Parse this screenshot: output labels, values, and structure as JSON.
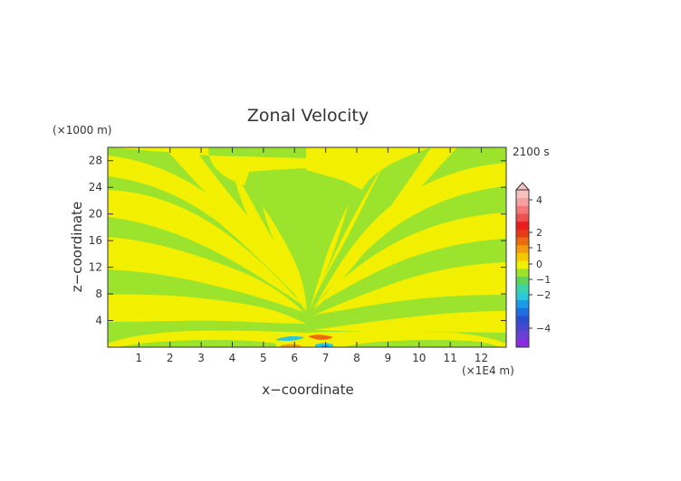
{
  "chart_data": {
    "type": "heatmap",
    "title": "Zonal Velocity",
    "xlabel": "x−coordinate",
    "ylabel": "z−coordinate",
    "x_unit_label": "(×1E4 m)",
    "y_unit_label": "(×1000 m)",
    "time_label": "2100 s",
    "x_ticks": [
      "1",
      "2",
      "3",
      "4",
      "5",
      "6",
      "7",
      "8",
      "9",
      "10",
      "11",
      "12"
    ],
    "y_ticks": [
      "4",
      "8",
      "12",
      "16",
      "20",
      "24",
      "28"
    ],
    "xlim": [
      0,
      12.8
    ],
    "ylim": [
      0,
      30
    ],
    "grid": false,
    "legend": "right",
    "colorbar": {
      "tick_labels": [
        "4",
        "2",
        "1",
        "0",
        "−1",
        "−2",
        "−4"
      ],
      "colors": [
        "#8a2be2",
        "#6a3fd8",
        "#4a46cf",
        "#2a4fd0",
        "#1f6fe0",
        "#1a9ae8",
        "#2cc7d8",
        "#3ad6a8",
        "#5fd35a",
        "#9be32d",
        "#f2f000",
        "#f5c800",
        "#f39a10",
        "#ee6a10",
        "#e83a18",
        "#ec1c1c",
        "#f05050",
        "#f47878",
        "#f7a0a0",
        "#f9c0c0"
      ]
    }
  }
}
